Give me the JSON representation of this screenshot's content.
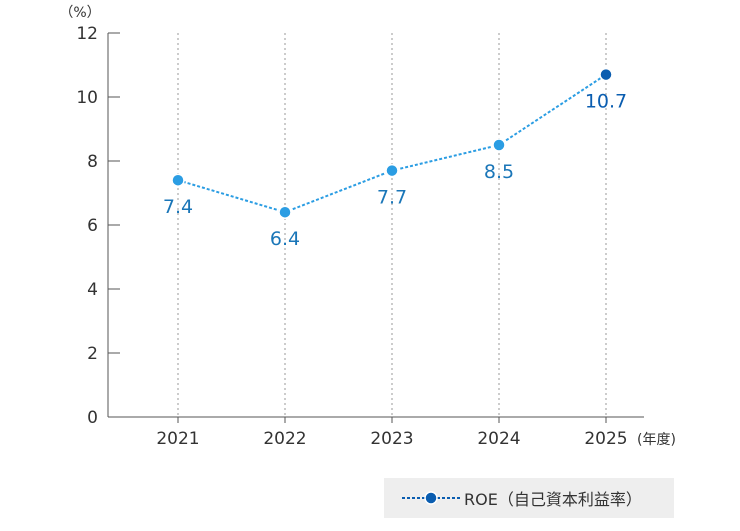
{
  "chart_data": {
    "type": "line",
    "categories": [
      "2021",
      "2022",
      "2023",
      "2024",
      "2025"
    ],
    "series": [
      {
        "name": "ROE（自己資本利益率）",
        "values": [
          7.4,
          6.4,
          7.7,
          8.5,
          10.7
        ],
        "color": "#2b9de3"
      }
    ],
    "data_labels": [
      "7.4",
      "6.4",
      "7.7",
      "8.5",
      "10.7"
    ],
    "yticks": [
      "0",
      "2",
      "4",
      "6",
      "8",
      "10",
      "12"
    ],
    "ylim": [
      0,
      12
    ],
    "yunit": "（%）",
    "xunit": "(年度)",
    "highlight_color": "#0a5db0",
    "label_color": "#1a76b8",
    "grid": "vertical dotted",
    "legend_position": "bottom-right"
  }
}
